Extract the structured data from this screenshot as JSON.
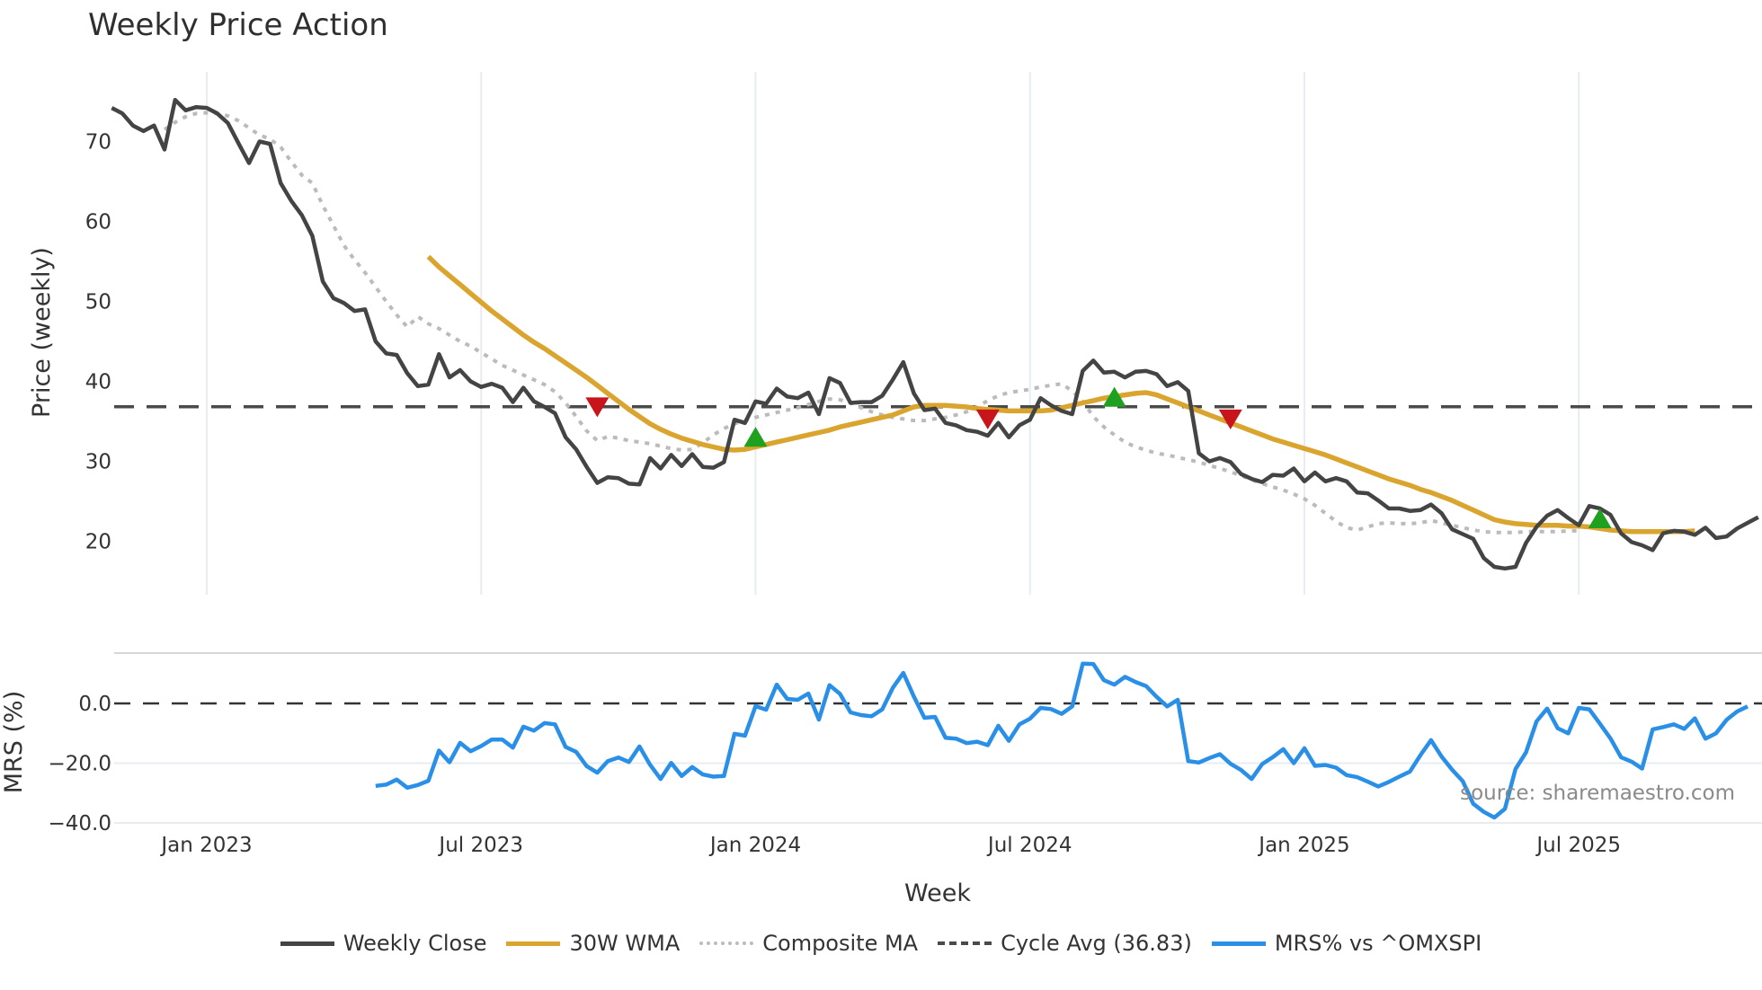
{
  "title": "Weekly Price Action",
  "source_note": "source: sharemaestro.com",
  "colors": {
    "close": "#444444",
    "wma": "#DAA52F",
    "composite": "#BBBBBB",
    "cycle": "#4a4a4a",
    "mrs": "#2A8FE6",
    "sell_marker": "#C8151B",
    "buy_marker": "#1FA01F",
    "grid": "#E8ECF2"
  },
  "legend": [
    {
      "label": "Weekly Close",
      "style": "solid",
      "color": "#444444"
    },
    {
      "label": "30W WMA",
      "style": "solid",
      "color": "#DAA52F"
    },
    {
      "label": "Composite MA",
      "style": "dotted",
      "color": "#BBBBBB"
    },
    {
      "label": "Cycle Avg (36.83)",
      "style": "dashed",
      "color": "#4a4a4a"
    },
    {
      "label": "MRS% vs ^OMXSPI",
      "style": "solid",
      "color": "#2A8FE6"
    }
  ],
  "chart_data": [
    {
      "type": "line",
      "title": "Weekly Price Action",
      "xlabel": "Week",
      "ylabel": "Price (weekly)",
      "yticks": [
        20,
        30,
        40,
        50,
        60,
        70
      ],
      "ylim": [
        13,
        78
      ],
      "xticks": [
        "Jan 2023",
        "Jul 2023",
        "Jan 2024",
        "Jul 2024",
        "Jan 2025",
        "Jul 2025"
      ],
      "x_start_week_offset": -9,
      "cycle_avg": 36.83,
      "series": [
        {
          "name": "Weekly Close",
          "start_week": -9,
          "values": [
            74.2,
            73.5,
            72.0,
            71.3,
            72.0,
            69.0,
            75.2,
            73.9,
            74.3,
            74.2,
            73.5,
            72.3,
            69.8,
            67.3,
            70.0,
            69.7,
            64.8,
            62.6,
            60.8,
            58.2,
            52.5,
            50.4,
            49.8,
            48.8,
            49.0,
            45.0,
            43.5,
            43.3,
            41.0,
            39.4,
            39.6,
            43.4,
            40.5,
            41.4,
            40.0,
            39.3,
            39.7,
            39.2,
            37.4,
            39.2,
            37.5,
            36.8,
            36.0,
            33.0,
            31.5,
            29.3,
            27.3,
            28.0,
            27.9,
            27.2,
            27.1,
            30.4,
            29.1,
            30.8,
            29.4,
            30.9,
            29.3,
            29.2,
            29.9,
            35.2,
            34.8,
            37.5,
            37.2,
            39.1,
            38.1,
            37.9,
            38.6,
            35.9,
            40.4,
            39.8,
            37.3,
            37.4,
            37.4,
            38.2,
            40.2,
            42.4,
            38.5,
            36.4,
            36.6,
            34.8,
            34.5,
            33.9,
            33.7,
            33.2,
            34.8,
            33.0,
            34.5,
            35.2,
            37.9,
            37.0,
            36.3,
            35.9,
            41.3,
            42.6,
            41.1,
            41.2,
            40.5,
            41.2,
            41.3,
            40.9,
            39.4,
            39.9,
            38.8,
            31.0,
            30.0,
            30.4,
            29.9,
            28.4,
            27.8,
            27.4,
            28.3,
            28.2,
            29.1,
            27.5,
            28.6,
            27.5,
            27.9,
            27.5,
            26.1,
            26.0,
            25.1,
            24.1,
            24.1,
            23.8,
            23.9,
            24.6,
            23.5,
            21.5,
            20.9,
            20.3,
            17.9,
            16.8,
            16.6,
            16.8,
            19.8,
            21.8,
            23.2,
            23.9,
            22.9,
            22.0,
            24.4,
            24.1,
            23.3,
            21.0,
            19.9,
            19.5,
            18.9,
            21.0,
            21.3,
            21.2,
            20.8,
            21.7,
            20.4,
            20.6,
            21.6,
            22.3,
            23.0
          ]
        },
        {
          "name": "30W WMA",
          "start_week": 21,
          "values": [
            55.6,
            54.3,
            53.2,
            52.1,
            51.0,
            49.9,
            48.8,
            47.8,
            46.8,
            45.8,
            44.9,
            44.1,
            43.2,
            42.3,
            41.4,
            40.5,
            39.5,
            38.5,
            37.5,
            36.5,
            35.6,
            34.7,
            34.0,
            33.4,
            32.9,
            32.5,
            32.1,
            31.8,
            31.5,
            31.4,
            31.5,
            31.8,
            32.1,
            32.4,
            32.7,
            33.0,
            33.3,
            33.6,
            33.9,
            34.3,
            34.6,
            34.9,
            35.2,
            35.5,
            35.8,
            36.3,
            36.8,
            37.0,
            37.0,
            37.0,
            36.9,
            36.8,
            36.6,
            36.5,
            36.4,
            36.3,
            36.3,
            36.3,
            36.3,
            36.4,
            36.7,
            37.0,
            37.3,
            37.6,
            37.9,
            38.1,
            38.3,
            38.5,
            38.6,
            38.3,
            37.8,
            37.3,
            36.8,
            36.3,
            35.8,
            35.3,
            34.8,
            34.3,
            33.8,
            33.3,
            32.8,
            32.4,
            32.0,
            31.6,
            31.2,
            30.8,
            30.3,
            29.8,
            29.3,
            28.8,
            28.3,
            27.8,
            27.4,
            27.0,
            26.5,
            26.1,
            25.6,
            25.1,
            24.5,
            23.9,
            23.3,
            22.7,
            22.4,
            22.2,
            22.1,
            22.0,
            22.0,
            22.0,
            21.9,
            21.9,
            21.8,
            21.6,
            21.4,
            21.3,
            21.2,
            21.2,
            21.2,
            21.2,
            21.2,
            21.2,
            21.3
          ]
        },
        {
          "name": "Composite MA",
          "start_week": -4,
          "values": [
            71.5,
            72.4,
            73.1,
            73.5,
            73.6,
            73.5,
            73.2,
            72.6,
            71.7,
            70.8,
            70.3,
            69.3,
            67.5,
            65.8,
            64.8,
            62.0,
            59.5,
            57.0,
            55.2,
            53.6,
            51.8,
            50.0,
            48.3,
            46.8,
            48.1,
            47.2,
            46.6,
            45.8,
            45.0,
            44.4,
            43.6,
            42.8,
            42.0,
            41.4,
            40.8,
            40.2,
            39.6,
            38.7,
            37.3,
            35.6,
            33.8,
            32.6,
            33.1,
            32.9,
            32.6,
            32.4,
            32.2,
            31.9,
            31.6,
            31.4,
            31.5,
            32.3,
            33.3,
            34.1,
            34.7,
            35.1,
            35.5,
            35.8,
            36.1,
            36.4,
            36.7,
            37.1,
            37.5,
            37.8,
            37.7,
            37.3,
            36.7,
            36.2,
            35.8,
            35.5,
            35.3,
            35.1,
            35.1,
            35.3,
            35.5,
            35.8,
            36.2,
            36.8,
            37.6,
            38.2,
            38.6,
            38.8,
            39.0,
            39.3,
            39.5,
            39.7,
            38.8,
            37.5,
            35.6,
            34.3,
            33.3,
            32.4,
            31.8,
            31.4,
            31.0,
            30.8,
            30.5,
            30.2,
            29.9,
            29.5,
            29.1,
            28.7,
            28.2,
            27.7,
            27.2,
            26.8,
            26.4,
            25.9,
            25.3,
            24.5,
            23.5,
            22.5,
            21.7,
            21.4,
            21.8,
            22.2,
            22.3,
            22.2,
            22.2,
            22.3,
            22.6,
            22.3,
            22.0,
            21.7,
            21.4,
            21.2,
            21.1,
            21.1,
            21.1,
            21.2,
            21.2,
            21.2,
            21.2,
            21.3,
            21.3
          ]
        }
      ],
      "markers": [
        {
          "type": "sell",
          "week": 37,
          "value": 36.83
        },
        {
          "type": "buy",
          "week": 52,
          "value": 33.0
        },
        {
          "type": "sell",
          "week": 74,
          "value": 35.3
        },
        {
          "type": "buy",
          "week": 86,
          "value": 38.0
        },
        {
          "type": "sell",
          "week": 97,
          "value": 35.3
        },
        {
          "type": "buy",
          "week": 132,
          "value": 22.8
        }
      ]
    },
    {
      "type": "line",
      "ylabel": "MRS (%)",
      "yticks": [
        -40.0,
        -20.0,
        0.0
      ],
      "ylim": [
        -42,
        17
      ],
      "zero_line": 0.0,
      "series": [
        {
          "name": "MRS% vs ^OMXSPI",
          "start_week": 16,
          "values": [
            -27.6,
            -27.2,
            -25.5,
            -28.2,
            -27.3,
            -25.9,
            -15.8,
            -19.7,
            -13.2,
            -16.0,
            -14.3,
            -12.1,
            -12.1,
            -14.8,
            -7.8,
            -9.1,
            -6.6,
            -7.0,
            -14.6,
            -16.2,
            -21.0,
            -23.2,
            -19.3,
            -18.1,
            -19.6,
            -14.4,
            -20.5,
            -25.3,
            -19.9,
            -24.3,
            -21.3,
            -23.8,
            -24.5,
            -24.3,
            -10.2,
            -10.8,
            -0.9,
            -2.1,
            6.3,
            1.5,
            1.2,
            3.3,
            -5.4,
            6.1,
            3.2,
            -3.0,
            -3.9,
            -4.3,
            -2.0,
            5.2,
            10.2,
            2.3,
            -4.8,
            -4.5,
            -11.5,
            -11.8,
            -13.3,
            -12.8,
            -14.0,
            -7.5,
            -12.5,
            -7.0,
            -5.1,
            -1.5,
            -1.9,
            -3.5,
            -1.0,
            13.3,
            13.2,
            7.8,
            6.3,
            8.9,
            7.2,
            5.8,
            2.2,
            -1.0,
            1.2,
            -19.3,
            -19.8,
            -18.3,
            -17.0,
            -20.2,
            -22.3,
            -25.3,
            -20.3,
            -18.0,
            -15.3,
            -20.0,
            -15.0,
            -20.9,
            -20.6,
            -21.5,
            -24.0,
            -24.7,
            -26.2,
            -27.8,
            -26.3,
            -24.5,
            -22.8,
            -17.3,
            -12.3,
            -17.8,
            -22.2,
            -26.0,
            -33.6,
            -36.3,
            -38.2,
            -35.3,
            -22.0,
            -16.4,
            -6.0,
            -1.7,
            -8.3,
            -10.0,
            -1.5,
            -2.0,
            -6.8,
            -11.7,
            -18.0,
            -19.5,
            -21.8,
            -8.7,
            -7.9,
            -7.0,
            -8.5,
            -5.0,
            -11.8,
            -10.0,
            -5.5,
            -2.7,
            -1.0
          ]
        }
      ]
    }
  ],
  "axes": {
    "price": {
      "label": "Price (weekly)",
      "ticks": [
        "20",
        "30",
        "40",
        "50",
        "60",
        "70"
      ]
    },
    "mrs": {
      "label": "MRS (%)",
      "ticks": [
        "0.0",
        "−20.0",
        "−40.0"
      ]
    },
    "x": {
      "label": "Week",
      "ticks": [
        "Jan 2023",
        "Jul 2023",
        "Jan 2024",
        "Jul 2024",
        "Jan 2025",
        "Jul 2025"
      ]
    }
  }
}
